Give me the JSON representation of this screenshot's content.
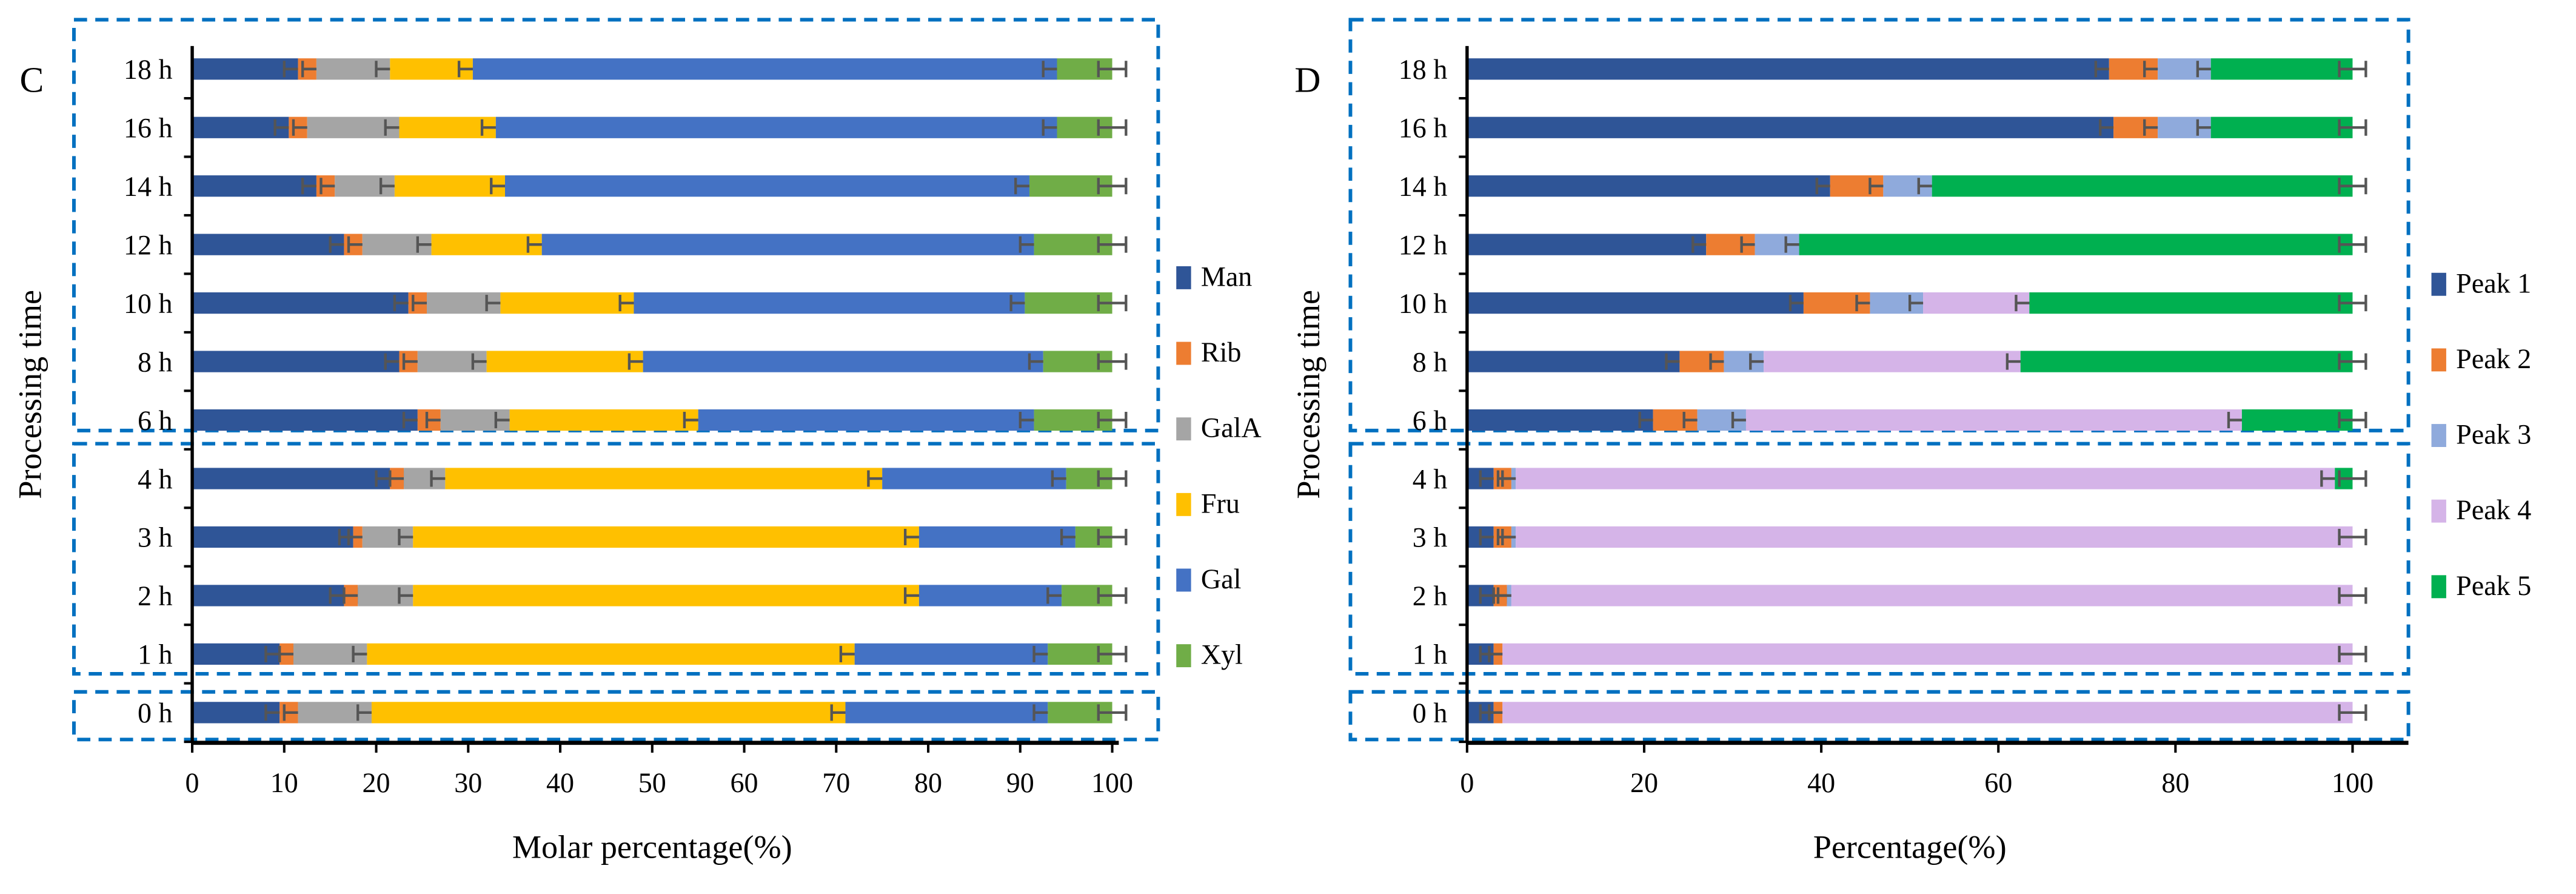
{
  "chart_data": [
    {
      "panel_letter": "C",
      "type": "bar",
      "orientation": "horizontal",
      "stacked": true,
      "xlabel": "Molar percentage(%)",
      "ylabel": "Processing time",
      "xlim": [
        0,
        100
      ],
      "xticks": [
        "0",
        "10",
        "20",
        "30",
        "40",
        "50",
        "60",
        "70",
        "80",
        "90",
        "100"
      ],
      "categories": [
        "18 h",
        "16 h",
        "14 h",
        "12 h",
        "10 h",
        "8 h",
        "6 h",
        "4 h",
        "3 h",
        "2 h",
        "1 h",
        "0 h"
      ],
      "legend_position": "right",
      "error_bars": true,
      "series": [
        {
          "name": "Man",
          "color": "#2F5597",
          "values": [
            11.5,
            10.5,
            13.5,
            16.5,
            23.5,
            22.5,
            24.5,
            21.5,
            17.5,
            16.5,
            9.5,
            9.5
          ]
        },
        {
          "name": "Rib",
          "color": "#ED7D31",
          "values": [
            2,
            2,
            2,
            2,
            2,
            2,
            2.5,
            1.5,
            1,
            1.5,
            1.5,
            2
          ]
        },
        {
          "name": "GalA",
          "color": "#A5A5A5",
          "values": [
            8,
            10,
            6.5,
            7.5,
            8,
            7.5,
            7.5,
            4.5,
            5.5,
            6,
            8,
            8
          ]
        },
        {
          "name": "Fru",
          "color": "#FFC000",
          "values": [
            9,
            10.5,
            12,
            12,
            14.5,
            17,
            20.5,
            47.5,
            55,
            55,
            53,
            51.5
          ]
        },
        {
          "name": "Gal",
          "color": "#4472C4",
          "values": [
            63.5,
            61,
            57,
            53.5,
            42.5,
            43.5,
            36.5,
            20,
            17,
            15.5,
            21,
            22
          ]
        },
        {
          "name": "Xyl",
          "color": "#70AD47",
          "values": [
            6,
            6,
            9,
            8.5,
            9.5,
            7.5,
            8.5,
            5,
            4,
            5.5,
            7,
            7
          ]
        }
      ],
      "groups": [
        {
          "rows": [
            "18 h",
            "16 h",
            "14 h",
            "12 h",
            "10 h",
            "8 h"
          ]
        },
        {
          "rows": [
            "6 h",
            "4 h",
            "3 h",
            "2 h",
            "1 h"
          ]
        },
        {
          "rows": [
            "0 h"
          ]
        }
      ]
    },
    {
      "panel_letter": "D",
      "type": "bar",
      "orientation": "horizontal",
      "stacked": true,
      "xlabel": "Percentage(%)",
      "ylabel": "Processing time",
      "xlim": [
        0,
        105
      ],
      "xticks": [
        "0",
        "20",
        "40",
        "60",
        "80",
        "100"
      ],
      "categories": [
        "18 h",
        "16 h",
        "14 h",
        "12 h",
        "10 h",
        "8 h",
        "6 h",
        "4 h",
        "3 h",
        "2 h",
        "1 h",
        "0 h"
      ],
      "legend_position": "right",
      "error_bars": true,
      "series": [
        {
          "name": "Peak 1",
          "color": "#2F5597",
          "values": [
            72.5,
            73,
            41,
            27,
            38,
            24,
            21,
            3,
            3,
            3,
            3,
            3
          ]
        },
        {
          "name": "Peak 2",
          "color": "#ED7D31",
          "values": [
            5.5,
            5,
            6,
            5.5,
            7.5,
            5,
            5,
            2,
            2,
            1.5,
            1,
            1
          ]
        },
        {
          "name": "Peak 3",
          "color": "#8FAADC",
          "values": [
            6,
            6,
            5.5,
            5,
            6,
            4.5,
            5.5,
            0.5,
            0.5,
            0.5,
            0,
            0
          ]
        },
        {
          "name": "Peak 4",
          "color": "#D5B4E8",
          "values": [
            0,
            0,
            0,
            0,
            12,
            29,
            56,
            92.5,
            94.5,
            95,
            96,
            96
          ]
        },
        {
          "name": "Peak 5",
          "color": "#00B050",
          "values": [
            16,
            16,
            47.5,
            62.5,
            36.5,
            37.5,
            12.5,
            2,
            0,
            0,
            0,
            0
          ]
        }
      ],
      "groups": [
        {
          "rows": [
            "18 h",
            "16 h",
            "14 h",
            "12 h",
            "10 h",
            "8 h"
          ]
        },
        {
          "rows": [
            "6 h",
            "4 h",
            "3 h",
            "2 h",
            "1 h"
          ]
        },
        {
          "rows": [
            "0 h"
          ]
        }
      ]
    }
  ],
  "colors": {
    "group_box": "#0070C0",
    "error_bar": "#555555"
  }
}
